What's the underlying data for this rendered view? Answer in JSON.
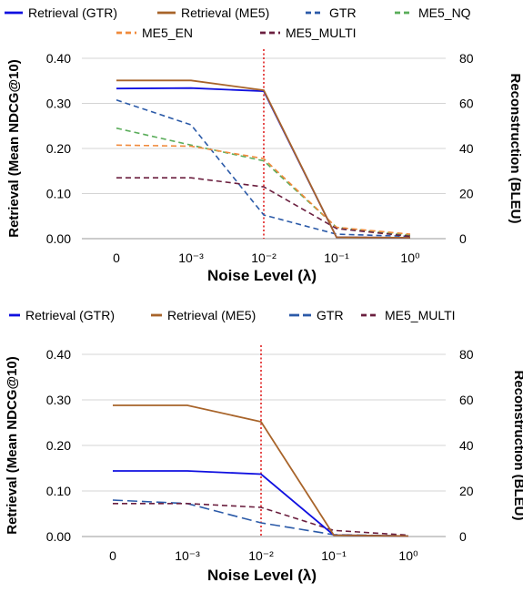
{
  "chart_data": [
    {
      "type": "line",
      "categories": [
        "0",
        "10⁻³",
        "10⁻²",
        "10⁻¹",
        "10⁰"
      ],
      "xlabel": "Noise Level (λ)",
      "ylabel_left": "Retrieval (Mean NDCG@10)",
      "ylabel_right": "Reconstruction (BLEU)",
      "ylim_left": [
        0,
        0.4
      ],
      "ylim_right": [
        0,
        80
      ],
      "yticks_left": [
        "0.00",
        "0.10",
        "0.20",
        "0.30",
        "0.40"
      ],
      "yticks_right": [
        "0",
        "20",
        "40",
        "60",
        "80"
      ],
      "vline_category_index": 2,
      "grid": true,
      "legend_position": "top",
      "series": [
        {
          "name": "Retrieval (GTR)",
          "axis": "left",
          "style": "solid",
          "color": "#1010e0",
          "values": [
            0.333,
            0.334,
            0.327,
            0.003,
            0.002
          ]
        },
        {
          "name": "Retrieval (ME5)",
          "axis": "left",
          "style": "solid",
          "color": "#a8642a",
          "values": [
            0.351,
            0.351,
            0.329,
            0.003,
            0.002
          ]
        },
        {
          "name": "GTR",
          "axis": "right",
          "style": "dashed",
          "color": "#2b5aa8",
          "values": [
            61.5,
            50.5,
            10.5,
            2.0,
            1.0
          ]
        },
        {
          "name": "ME5_NQ",
          "axis": "right",
          "style": "dashed",
          "color": "#5aad5a",
          "values": [
            49.0,
            41.5,
            34.5,
            5.0,
            1.5
          ]
        },
        {
          "name": "ME5_EN",
          "axis": "right",
          "style": "dashed",
          "color": "#f08a3c",
          "values": [
            41.5,
            41.0,
            35.5,
            5.0,
            2.0
          ]
        },
        {
          "name": "ME5_MULTI",
          "axis": "right",
          "style": "dashed",
          "color": "#6b1f3f",
          "values": [
            27.0,
            27.0,
            23.0,
            4.5,
            1.0
          ]
        }
      ]
    },
    {
      "type": "line",
      "categories": [
        "0",
        "10⁻³",
        "10⁻²",
        "10⁻¹",
        "10⁰"
      ],
      "xlabel": "Noise Level (λ)",
      "ylabel_left": "Retrieval (Mean NDCG@10)",
      "ylabel_right": "Reconstruction (BLEU)",
      "ylim_left": [
        0,
        0.4
      ],
      "ylim_right": [
        0,
        80
      ],
      "yticks_left": [
        "0.00",
        "0.10",
        "0.20",
        "0.30",
        "0.40"
      ],
      "yticks_right": [
        "0",
        "20",
        "40",
        "60",
        "80"
      ],
      "vline_category_index": 2,
      "grid": true,
      "legend_position": "top",
      "series": [
        {
          "name": "Retrieval (GTR)",
          "axis": "left",
          "style": "solid",
          "color": "#1010e0",
          "values": [
            0.144,
            0.144,
            0.137,
            0.003,
            0.001
          ]
        },
        {
          "name": "Retrieval (ME5)",
          "axis": "left",
          "style": "solid",
          "color": "#a8642a",
          "values": [
            0.288,
            0.288,
            0.252,
            0.003,
            0.001
          ]
        },
        {
          "name": "GTR",
          "axis": "right",
          "style": "longdash",
          "color": "#2b5aa8",
          "values": [
            16.0,
            14.5,
            6.0,
            0.8,
            0.3
          ]
        },
        {
          "name": "ME5_MULTI",
          "axis": "right",
          "style": "dashed",
          "color": "#6b1f3f",
          "values": [
            14.5,
            14.5,
            12.8,
            2.7,
            0.6
          ]
        }
      ]
    }
  ]
}
